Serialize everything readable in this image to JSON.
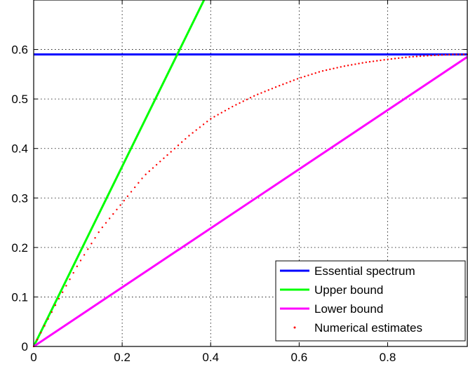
{
  "chart_data": {
    "type": "line",
    "title": "",
    "xlabel": "",
    "ylabel": "",
    "xlim": [
      0,
      0.98
    ],
    "ylim": [
      0,
      0.7
    ],
    "grid": true,
    "legend_position": "bottom-right",
    "x_ticks": [
      "0",
      "0.2",
      "0.4",
      "0.6",
      "0.8"
    ],
    "y_ticks": [
      "0",
      "0.1",
      "0.2",
      "0.3",
      "0.4",
      "0.5",
      "0.6"
    ],
    "series": [
      {
        "name": "Essential spectrum",
        "style": "line",
        "color": "#0000ff",
        "x": [
          0,
          0.98
        ],
        "y": [
          0.59,
          0.59
        ]
      },
      {
        "name": "Upper bound",
        "style": "line",
        "color": "#00ff00",
        "x": [
          0,
          0.385
        ],
        "y": [
          0,
          0.7
        ]
      },
      {
        "name": "Lower bound",
        "style": "line",
        "color": "#ff00ff",
        "x": [
          0,
          0.98
        ],
        "y": [
          0,
          0.585
        ]
      },
      {
        "name": "Numerical estimates",
        "style": "dots",
        "color": "#ff0000",
        "x": [
          0,
          0.05,
          0.1,
          0.15,
          0.2,
          0.25,
          0.3,
          0.35,
          0.4,
          0.45,
          0.5,
          0.55,
          0.6,
          0.65,
          0.7,
          0.75,
          0.8,
          0.85,
          0.9,
          0.95,
          0.98
        ],
        "y": [
          0,
          0.085,
          0.165,
          0.235,
          0.29,
          0.345,
          0.385,
          0.425,
          0.46,
          0.485,
          0.507,
          0.525,
          0.542,
          0.556,
          0.566,
          0.574,
          0.58,
          0.585,
          0.588,
          0.59,
          0.59
        ]
      }
    ]
  }
}
